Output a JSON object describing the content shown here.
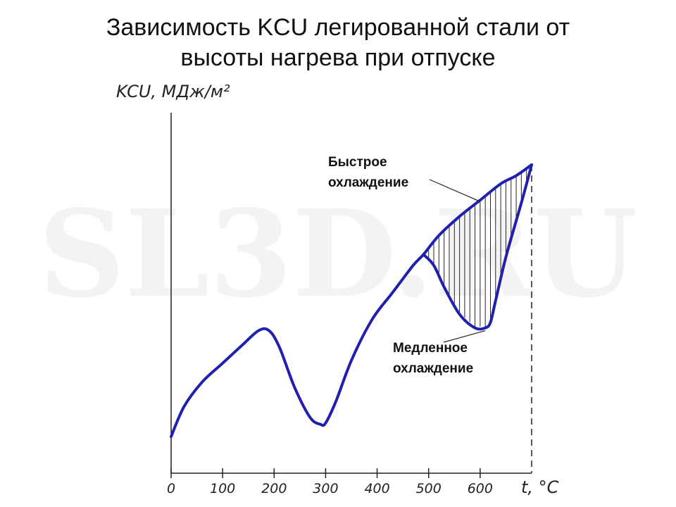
{
  "chart_data": {
    "type": "line",
    "title_lines": [
      "Зависимость KCU легированной стали от",
      "высоты нагрева при отпуске"
    ],
    "ylabel": "KCU, МДж/м²",
    "xlabel": "t, °C",
    "xlim": [
      0,
      700
    ],
    "x_ticks": [
      0,
      100,
      200,
      300,
      400,
      500,
      600
    ],
    "watermark": "SL3D.RU",
    "series": [
      {
        "name": "Быстрое охлаждение",
        "x": [
          0,
          25,
          60,
          100,
          140,
          170,
          190,
          210,
          240,
          270,
          290,
          300,
          320,
          350,
          390,
          430,
          470,
          490,
          520,
          560,
          600,
          640,
          670,
          700
        ],
        "y": [
          0.0,
          0.11,
          0.2,
          0.27,
          0.34,
          0.39,
          0.39,
          0.33,
          0.18,
          0.07,
          0.045,
          0.05,
          0.13,
          0.28,
          0.43,
          0.53,
          0.63,
          0.67,
          0.74,
          0.81,
          0.87,
          0.93,
          0.96,
          1.0
        ]
      },
      {
        "name": "Медленное охлаждение",
        "x": [
          490,
          510,
          530,
          560,
          590,
          610,
          620,
          630,
          650,
          680,
          700
        ],
        "y": [
          0.67,
          0.63,
          0.55,
          0.45,
          0.4,
          0.4,
          0.42,
          0.5,
          0.66,
          0.86,
          1.0
        ]
      }
    ],
    "hatched_region": {
      "between_series": [
        "Быстрое охлаждение",
        "Медленное охлаждение"
      ],
      "x_range": [
        490,
        700
      ]
    },
    "annotations": [
      {
        "lines": [
          "Быстрое",
          "охлаждение"
        ],
        "target": "Быстрое охлаждение",
        "at_x": 600
      },
      {
        "lines": [
          "Медленное",
          "охлаждение"
        ],
        "target": "Медленное охлаждение",
        "at_x": 610
      }
    ],
    "colors": {
      "curve": "#2020b0",
      "axis": "#222222",
      "hatch": "#222222"
    }
  }
}
